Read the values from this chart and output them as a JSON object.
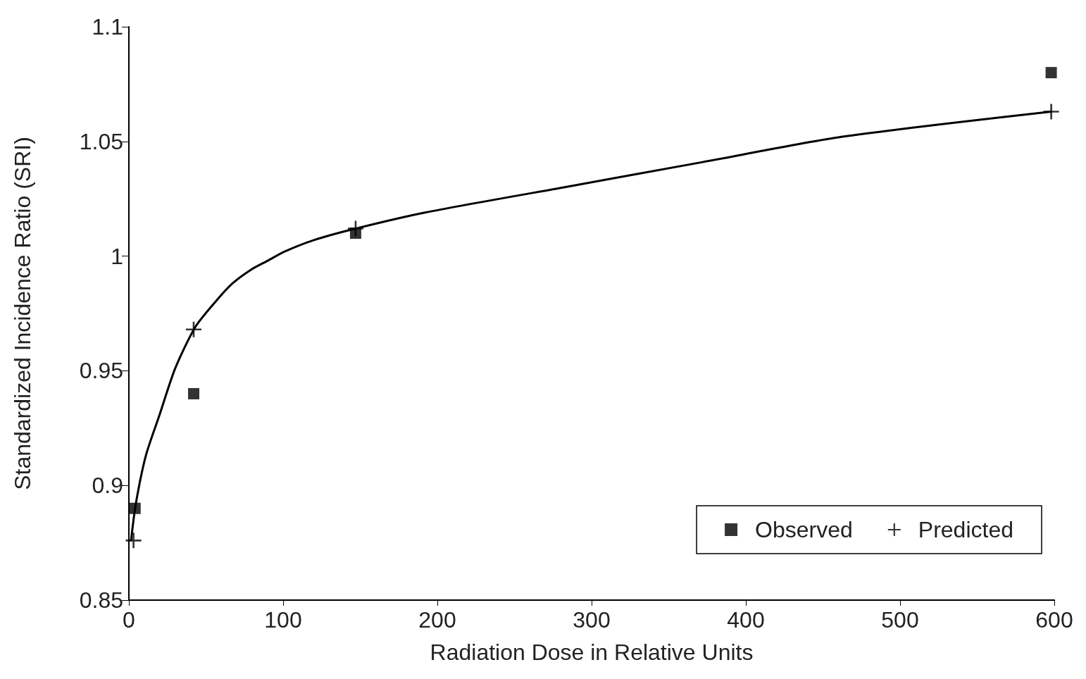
{
  "chart_data": {
    "type": "scatter",
    "xlabel": "Radiation Dose in Relative Units",
    "ylabel": "Standardized Incidence Ratio (SRI)",
    "xlim": [
      0,
      600
    ],
    "xticks": [
      0,
      100,
      200,
      300,
      400,
      500,
      600
    ],
    "ylim": [
      0.85,
      1.1
    ],
    "yticks": [
      0.85,
      0.9,
      0.95,
      1,
      1.05,
      1.1
    ],
    "grid": false,
    "legend": "bottom right",
    "series": [
      {
        "name": "Observed",
        "color": "#000000",
        "marker": "square",
        "x": [
          4,
          42,
          147,
          598
        ],
        "values": [
          0.89,
          0.94,
          1.01,
          1.08
        ]
      },
      {
        "name": "Predicted",
        "color": "#000000",
        "marker": "cross",
        "x": [
          3,
          42,
          147,
          598
        ],
        "values": [
          0.876,
          0.968,
          1.012,
          1.063
        ]
      },
      {
        "type": "line",
        "color": "#000000",
        "marker": "none",
        "line_style": "solid",
        "x": [
          1.4,
          4.5,
          11,
          20,
          30,
          43,
          56,
          67,
          79,
          90,
          101,
          120,
          147,
          192,
          282,
          372,
          462,
          598
        ],
        "values": [
          0.876,
          0.892,
          0.913,
          0.931,
          0.951,
          0.969,
          0.98,
          0.988,
          0.994,
          0.998,
          1.002,
          1.007,
          1.012,
          1.019,
          1.03,
          1.041,
          1.052,
          1.063
        ]
      }
    ]
  }
}
